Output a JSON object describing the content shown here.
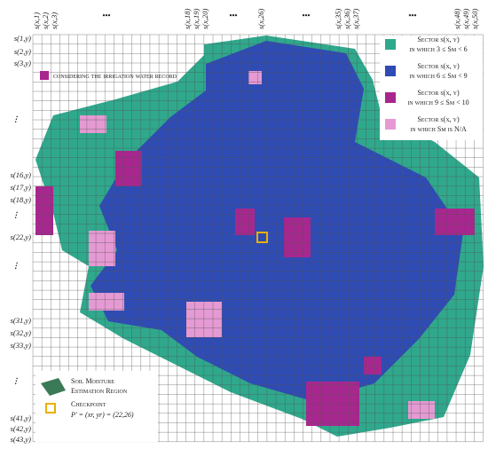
{
  "column_labels": [
    "s(x,1)",
    "s(x,2)",
    "s(x,3)",
    "•••",
    "s(x,18)",
    "s(x,19)",
    "s(x,20)",
    "•••",
    "s(x,26)",
    "•••",
    "s(x,35)",
    "s(x,36)",
    "s(x,37)",
    "•••",
    "s(x,48)",
    "s(x,49)",
    "s(x,50)"
  ],
  "row_labels": [
    "s(1,y)",
    "s(2,y)",
    "s(3,y)",
    "⋮",
    "s(16,y)",
    "s(17,y)",
    "s(18,y)",
    "⋮",
    "s(22,y)",
    "⋮",
    "s(31,y)",
    "s(32,y)",
    "s(33,y)",
    "⋮",
    "s(41,y)",
    "s(42,y)",
    "s(43,y)"
  ],
  "note": "considering the irrigation water record",
  "legend": [
    {
      "title": "Sector s(x, y)",
      "condition": "in which 3 ≤ Sm < 6"
    },
    {
      "title": "Sector s(x, y)",
      "condition": "in which 6 ≤ Sm < 9"
    },
    {
      "title": "Sector s(x, y)",
      "condition": "in which 9 ≤ Sm < 10"
    },
    {
      "title": "Sector s(x, y)",
      "condition": "in which Sm is N/A"
    }
  ],
  "region_legend": {
    "region_line1": "Soil Moisture",
    "region_line2": "Estimation Region",
    "checkpoint": "Checkpoint",
    "checkpoint_coords": "P′ = (xr, yr) = (22,26)"
  }
}
